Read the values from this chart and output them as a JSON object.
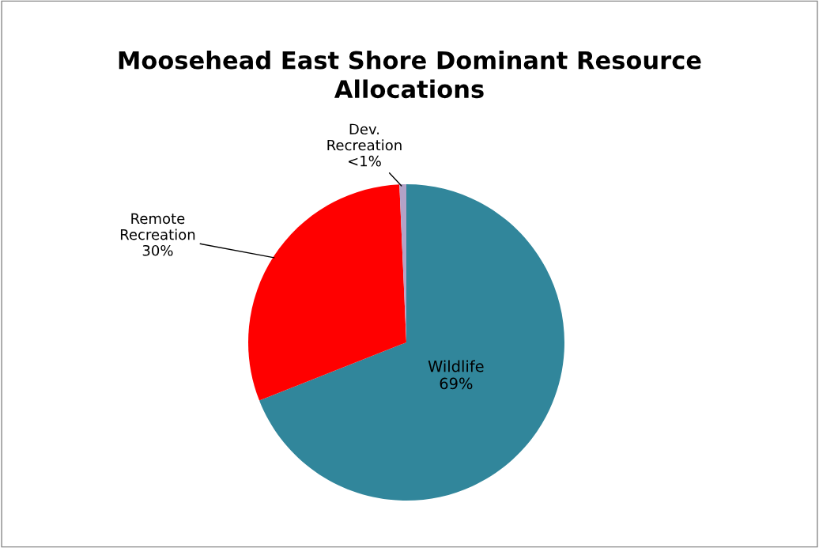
{
  "chart_data": {
    "type": "pie",
    "title": "Moosehead East Shore Dominant Resource\nAllocations",
    "categories": [
      "Wildlife",
      "Remote Recreation",
      "Dev. Recreation"
    ],
    "values": [
      69,
      30.3,
      0.7
    ],
    "value_labels": [
      "69%",
      "30%",
      "<1%"
    ],
    "colors": [
      "#31869b",
      "#ff0000",
      "#b3a2c7"
    ],
    "legend": false
  }
}
